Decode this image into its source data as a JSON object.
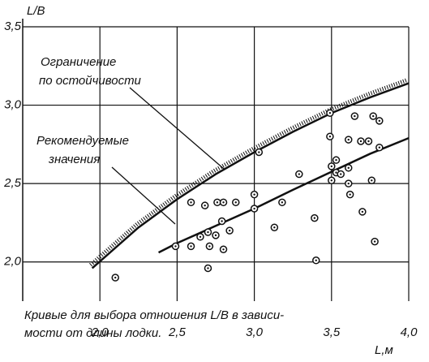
{
  "chart_data": {
    "type": "scatter",
    "y_label": "L/B",
    "x_label": "L,м",
    "xlim": [
      1.5,
      4.0
    ],
    "ylim": [
      1.75,
      3.5
    ],
    "xticks": [
      {
        "value": 2.0,
        "label": "2,0"
      },
      {
        "value": 2.5,
        "label": "2,5"
      },
      {
        "value": 3.0,
        "label": "3,0"
      },
      {
        "value": 3.5,
        "label": "3,5"
      },
      {
        "value": 4.0,
        "label": "4,0"
      }
    ],
    "yticks": [
      {
        "value": 2.0,
        "label": "2,0"
      },
      {
        "value": 2.5,
        "label": "2,5"
      },
      {
        "value": 3.0,
        "label": "3,0"
      },
      {
        "value": 3.5,
        "label": "3,5"
      }
    ],
    "grid": true,
    "color": "#111111",
    "x": [
      2.1,
      2.49,
      2.59,
      2.59,
      2.65,
      2.68,
      2.7,
      2.71,
      2.7,
      2.75,
      2.76,
      2.79,
      2.8,
      2.8,
      2.84,
      2.88,
      3.0,
      3.0,
      3.03,
      3.13,
      3.18,
      3.29,
      3.39,
      3.4,
      3.49,
      3.49,
      3.5,
      3.5,
      3.53,
      3.53,
      3.56,
      3.61,
      3.61,
      3.61,
      3.62,
      3.65,
      3.69,
      3.7,
      3.74,
      3.76,
      3.77,
      3.81,
      3.81,
      3.78
    ],
    "y": [
      1.9,
      2.1,
      2.1,
      2.38,
      2.16,
      2.36,
      2.19,
      2.1,
      1.96,
      2.17,
      2.38,
      2.26,
      2.38,
      2.08,
      2.2,
      2.38,
      2.43,
      2.34,
      2.7,
      2.22,
      2.38,
      2.56,
      2.28,
      2.01,
      2.95,
      2.8,
      2.61,
      2.52,
      2.57,
      2.65,
      2.56,
      2.78,
      2.6,
      2.5,
      2.43,
      2.93,
      2.77,
      2.32,
      2.77,
      2.52,
      2.93,
      2.9,
      2.73,
      2.13
    ],
    "lines": [
      {
        "x": [
          1.95,
          2.25,
          2.5,
          2.75,
          3.0,
          3.25,
          3.5,
          3.75,
          4.0
        ],
        "y": [
          1.96,
          2.22,
          2.4,
          2.56,
          2.7,
          2.83,
          2.95,
          3.05,
          3.14
        ],
        "hatched": true
      },
      {
        "x": [
          2.38,
          2.5,
          2.75,
          3.0,
          3.25,
          3.5,
          3.75,
          4.0
        ],
        "y": [
          2.06,
          2.12,
          2.23,
          2.34,
          2.46,
          2.575,
          2.69,
          2.79
        ],
        "hatched": false
      }
    ],
    "annotations": [
      "Ограничение",
      "по остойчивости",
      "Рекомендуемые",
      "значения"
    ],
    "caption": [
      "Кривые для выбора отношения L/B в зависи-",
      "мости от длины лодки."
    ]
  }
}
